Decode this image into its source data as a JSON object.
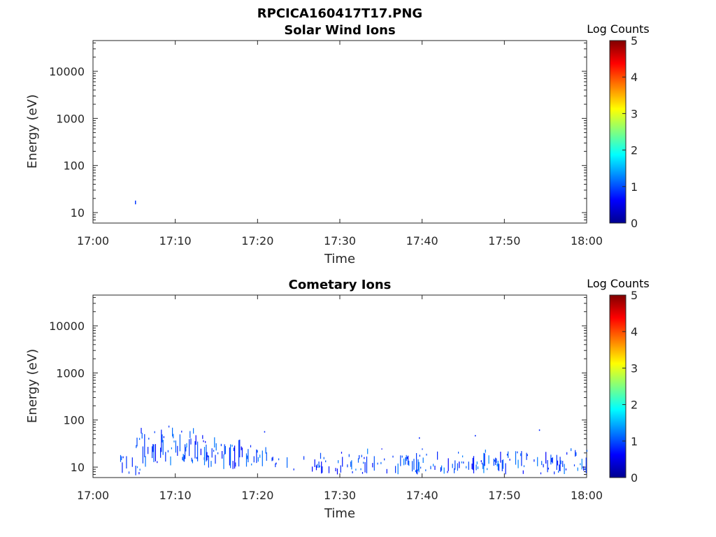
{
  "figure": {
    "title": "RPCICA160417T17.PNG"
  },
  "chart_data": [
    {
      "type": "heatmap",
      "title": "Solar Wind Ions",
      "xlabel": "Time",
      "ylabel": "Energy (eV)",
      "x_ticks": [
        "17:00",
        "17:10",
        "17:20",
        "17:30",
        "17:40",
        "17:50",
        "18:00"
      ],
      "x_range_min": [
        0,
        60
      ],
      "y_scale": "log",
      "y_ticks": [
        10,
        100,
        1000,
        10000
      ],
      "y_tick_labels": [
        "10",
        "100",
        "1000",
        "10000"
      ],
      "y_range": [
        6,
        45000
      ],
      "colorbar": {
        "label": "Log Counts",
        "range": [
          0,
          5
        ],
        "ticks": [
          "0",
          "1",
          "2",
          "3",
          "4",
          "5"
        ]
      },
      "events": [
        {
          "t_min": 5.1,
          "e_low": 15,
          "e_high": 18,
          "log_counts": 0.4
        }
      ]
    },
    {
      "type": "heatmap",
      "title": "Cometary Ions",
      "xlabel": "Time",
      "ylabel": "Energy (eV)",
      "x_ticks": [
        "17:00",
        "17:10",
        "17:20",
        "17:30",
        "17:40",
        "17:50",
        "18:00"
      ],
      "x_range_min": [
        0,
        60
      ],
      "y_scale": "log",
      "y_ticks": [
        10,
        100,
        1000,
        10000
      ],
      "y_tick_labels": [
        "10",
        "100",
        "1000",
        "10000"
      ],
      "y_range": [
        6,
        45000
      ],
      "colorbar": {
        "label": "Log Counts",
        "range": [
          0,
          5
        ],
        "ticks": [
          "0",
          "1",
          "2",
          "3",
          "4",
          "5"
        ]
      },
      "activity_bands": [
        {
          "t_start": 3.2,
          "t_end": 6.0,
          "e_low": 6,
          "e_high": 20,
          "density": 0.35
        },
        {
          "t_start": 5.0,
          "t_end": 9.5,
          "e_low": 10,
          "e_high": 80,
          "density": 0.6
        },
        {
          "t_start": 9.5,
          "t_end": 13.5,
          "e_low": 12,
          "e_high": 75,
          "density": 0.7
        },
        {
          "t_start": 13.5,
          "t_end": 18.5,
          "e_low": 9,
          "e_high": 60,
          "density": 0.55
        },
        {
          "t_start": 18.5,
          "t_end": 21.5,
          "e_low": 9,
          "e_high": 30,
          "density": 0.3
        },
        {
          "t_start": 21.5,
          "t_end": 27.0,
          "e_low": 8,
          "e_high": 18,
          "density": 0.2
        },
        {
          "t_start": 27.0,
          "t_end": 36.0,
          "e_low": 7,
          "e_high": 25,
          "density": 0.4
        },
        {
          "t_start": 36.0,
          "t_end": 45.0,
          "e_low": 7,
          "e_high": 25,
          "density": 0.45
        },
        {
          "t_start": 45.0,
          "t_end": 60.0,
          "e_low": 7,
          "e_high": 28,
          "density": 0.5
        }
      ],
      "events": [
        {
          "t_min": 20.8,
          "e_low": 55,
          "e_high": 58,
          "log_counts": 0.3
        },
        {
          "t_min": 39.6,
          "e_low": 40,
          "e_high": 43,
          "log_counts": 0.3
        },
        {
          "t_min": 46.4,
          "e_low": 45,
          "e_high": 48,
          "log_counts": 0.3
        },
        {
          "t_min": 54.2,
          "e_low": 60,
          "e_high": 63,
          "log_counts": 0.3
        }
      ]
    }
  ]
}
